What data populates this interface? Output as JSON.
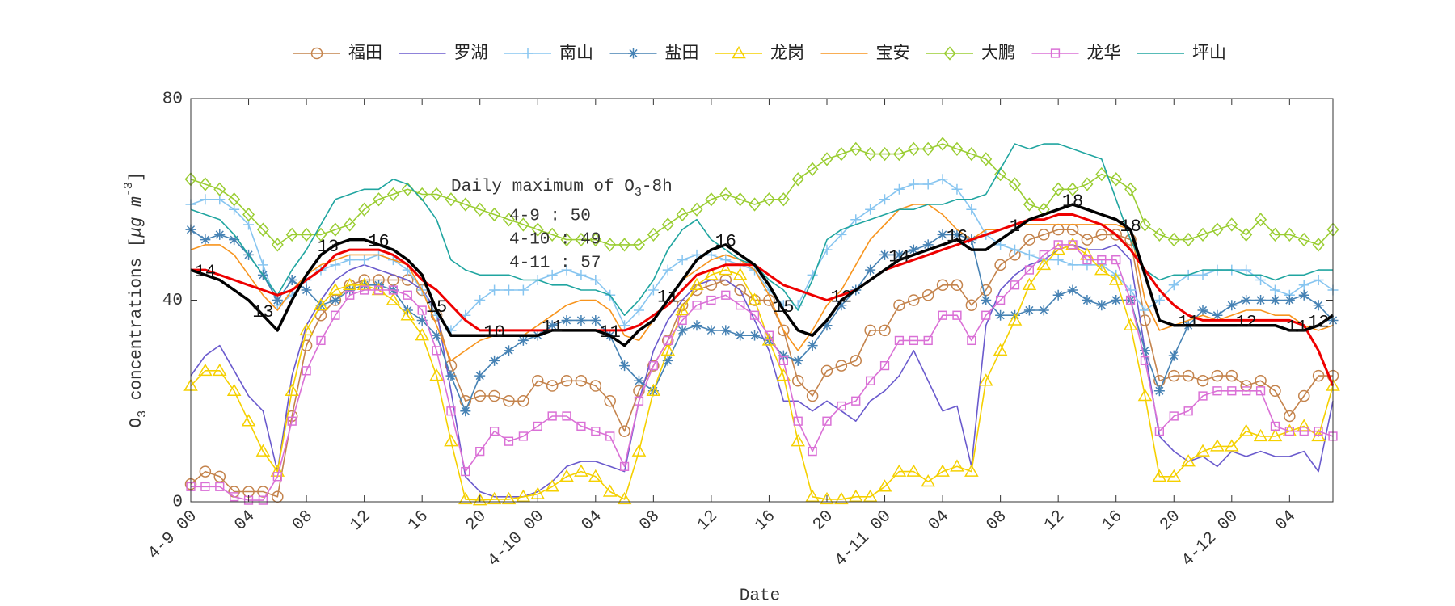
{
  "chart_data": {
    "type": "line",
    "x_label": "Date",
    "y_label": [
      "O",
      "3",
      " concentrations [",
      "μg m",
      "-3",
      "]"
    ],
    "annotation": {
      "title": [
        "Daily maximum of O",
        "3",
        "-8h"
      ],
      "lines": [
        "4-9 : 50",
        "4-10 : 49",
        "4-11 : 57"
      ]
    },
    "x": [
      0,
      1,
      2,
      3,
      4,
      5,
      6,
      7,
      8,
      9,
      10,
      11,
      12,
      13,
      14,
      15,
      16,
      17,
      18,
      19,
      20,
      21,
      22,
      23,
      24,
      25,
      26,
      27,
      28,
      29,
      30,
      31,
      32,
      33,
      34,
      35,
      36,
      37,
      38,
      39,
      40,
      41,
      42,
      43,
      44,
      45,
      46,
      47,
      48,
      49,
      50,
      51,
      52,
      53,
      54,
      55,
      56,
      57,
      58,
      59,
      60,
      61,
      62,
      63,
      64,
      65,
      66,
      67,
      68,
      69,
      70,
      71,
      72,
      73,
      74,
      75,
      76,
      77,
      78,
      79
    ],
    "xlim": [
      0,
      79
    ],
    "xticks": [
      {
        "value": 0,
        "label": "4-9 00"
      },
      {
        "value": 4,
        "label": "04"
      },
      {
        "value": 8,
        "label": "08"
      },
      {
        "value": 12,
        "label": "12"
      },
      {
        "value": 16,
        "label": "16"
      },
      {
        "value": 20,
        "label": "20"
      },
      {
        "value": 24,
        "label": "4-10 00"
      },
      {
        "value": 28,
        "label": "04"
      },
      {
        "value": 32,
        "label": "08"
      },
      {
        "value": 36,
        "label": "12"
      },
      {
        "value": 40,
        "label": "16"
      },
      {
        "value": 44,
        "label": "20"
      },
      {
        "value": 48,
        "label": "4-11 00"
      },
      {
        "value": 52,
        "label": "04"
      },
      {
        "value": 56,
        "label": "08"
      },
      {
        "value": 60,
        "label": "12"
      },
      {
        "value": 64,
        "label": "16"
      },
      {
        "value": 68,
        "label": "20"
      },
      {
        "value": 72,
        "label": "4-12 00"
      },
      {
        "value": 76,
        "label": "04"
      }
    ],
    "ylim": [
      0,
      80
    ],
    "yticks": [
      0,
      40,
      80
    ],
    "series": [
      {
        "name": "福田",
        "color": "#c4834c",
        "marker": "o",
        "values": [
          3.5,
          6,
          5,
          2,
          2,
          2,
          1,
          17,
          31,
          37,
          40,
          43,
          44,
          44,
          44,
          44,
          42,
          37,
          27,
          20,
          21,
          21,
          20,
          20,
          24,
          23,
          24,
          24,
          23,
          20,
          14,
          22,
          27,
          32,
          39,
          42,
          43,
          44,
          42,
          40,
          40,
          34,
          24,
          21,
          26,
          27,
          28,
          34,
          34,
          39,
          40,
          41,
          43,
          43,
          39,
          42,
          47,
          49,
          52,
          53,
          54,
          54,
          52,
          53,
          53,
          52,
          36,
          24,
          25,
          25,
          24,
          25,
          25,
          23,
          24,
          22,
          17,
          21,
          25,
          25
        ]
      },
      {
        "name": "罗湖",
        "color": "#6a5acd",
        "values": [
          25,
          29,
          31,
          26,
          21,
          18,
          6,
          25,
          35,
          40,
          44,
          46,
          47,
          46,
          45,
          44,
          42,
          38,
          22,
          5,
          2,
          1,
          1,
          1,
          2,
          4,
          7,
          8,
          8,
          7,
          6,
          20,
          30,
          36,
          40,
          43,
          44,
          44,
          42,
          36,
          30,
          20,
          20,
          18,
          20,
          18,
          16,
          20,
          22,
          25,
          30,
          24,
          18,
          19,
          7,
          35,
          42,
          45,
          47,
          48,
          50,
          51,
          50,
          50,
          51,
          48,
          30,
          13,
          10,
          8,
          9,
          7,
          10,
          9,
          10,
          9,
          9,
          10,
          6,
          20
        ]
      },
      {
        "name": "南山",
        "color": "#87c5f0",
        "marker": "+",
        "values": [
          59,
          60,
          60,
          58,
          55,
          47,
          39,
          41,
          44,
          46,
          47,
          48,
          48,
          49,
          48,
          46,
          42,
          37,
          34,
          37,
          40,
          42,
          42,
          42,
          44,
          45,
          46,
          45,
          44,
          41,
          35,
          38,
          42,
          46,
          48,
          49,
          49,
          48,
          47,
          46,
          42,
          39,
          39,
          45,
          50,
          53,
          56,
          58,
          60,
          62,
          63,
          63,
          64,
          62,
          58,
          53,
          51,
          50,
          49,
          48,
          48,
          47,
          47,
          47,
          45,
          42,
          38,
          40,
          43,
          45,
          45,
          46,
          46,
          46,
          44,
          42,
          41,
          43,
          44,
          42
        ]
      },
      {
        "name": "盐田",
        "color": "#4682b4",
        "marker": "*",
        "values": [
          54,
          52,
          53,
          52,
          49,
          45,
          40,
          44,
          42,
          39,
          40,
          42,
          43,
          43,
          42,
          38,
          36,
          33,
          25,
          18,
          25,
          28,
          30,
          32,
          33,
          35,
          36,
          36,
          36,
          33,
          27,
          24,
          22,
          28,
          34,
          35,
          34,
          34,
          33,
          33,
          32,
          29,
          28,
          31,
          35,
          39,
          42,
          46,
          49,
          49,
          50,
          51,
          53,
          53,
          52,
          40,
          37,
          37,
          38,
          38,
          41,
          42,
          40,
          39,
          40,
          40,
          30,
          22,
          29,
          35,
          38,
          37,
          39,
          40,
          40,
          40,
          40,
          41,
          39,
          36
        ]
      },
      {
        "name": "龙岗",
        "color": "#f5d000",
        "marker": "^",
        "values": [
          23,
          26,
          26,
          22,
          16,
          10,
          6,
          22,
          34,
          39,
          42,
          43,
          43,
          42,
          40,
          37,
          33,
          25,
          12,
          0.5,
          0.3,
          0.5,
          0.5,
          1,
          1.5,
          3,
          5,
          6,
          5,
          2,
          0.5,
          10,
          22,
          30,
          38,
          43,
          45,
          46,
          45,
          40,
          32,
          25,
          12,
          1,
          0.5,
          0.5,
          1,
          1,
          3,
          6,
          6,
          4,
          6,
          7,
          6,
          24,
          30,
          36,
          43,
          47,
          50,
          51,
          49,
          46,
          44,
          35,
          21,
          5,
          5,
          8,
          10,
          11,
          11,
          14,
          13,
          13,
          14,
          15,
          13,
          23
        ]
      },
      {
        "name": "宝安",
        "color": "#f7941d",
        "values": [
          50,
          51,
          51,
          49,
          45,
          41,
          38,
          42,
          45,
          47,
          48,
          49,
          49,
          49,
          48,
          47,
          42,
          35,
          28,
          30,
          32,
          33,
          33,
          33,
          35,
          37,
          39,
          40,
          40,
          38,
          33,
          32,
          36,
          40,
          44,
          46,
          48,
          49,
          48,
          46,
          41,
          34,
          30,
          34,
          39,
          42,
          47,
          52,
          55,
          58,
          59,
          59,
          57,
          54,
          52,
          54,
          54,
          55,
          55,
          55,
          55,
          55,
          55,
          55,
          55,
          54,
          40,
          34,
          35,
          36,
          37,
          36,
          37,
          38,
          38,
          37,
          37,
          35,
          34,
          35
        ]
      },
      {
        "name": "大鹏",
        "color": "#9acd32",
        "marker": "d",
        "values": [
          64,
          63,
          62,
          60,
          57,
          54,
          51,
          53,
          53,
          53,
          54,
          55,
          58,
          60,
          61,
          62,
          61,
          61,
          60,
          59,
          58,
          57,
          56,
          55,
          54,
          53,
          52,
          52,
          52,
          51,
          51,
          51,
          53,
          55,
          57,
          58,
          60,
          61,
          60,
          59,
          60,
          60,
          64,
          66,
          68,
          69,
          70,
          69,
          69,
          69,
          70,
          70,
          71,
          70,
          69,
          68,
          65,
          63,
          59,
          58,
          62,
          62,
          63,
          65,
          64,
          62,
          55,
          53,
          52,
          52,
          53,
          54,
          55,
          53,
          56,
          53,
          53,
          52,
          51,
          54
        ]
      },
      {
        "name": "龙华",
        "color": "#da70d6",
        "marker": "s",
        "values": [
          3,
          3,
          3,
          1,
          0.3,
          0.3,
          5,
          16,
          26,
          32,
          37,
          41,
          42,
          42,
          42,
          41,
          38,
          30,
          18,
          6,
          10,
          14,
          12,
          13,
          15,
          17,
          17,
          15,
          14,
          13,
          7,
          20,
          27,
          32,
          36,
          39,
          40,
          41,
          39,
          37,
          33,
          28,
          16,
          10,
          16,
          19,
          20,
          24,
          27,
          32,
          32,
          32,
          37,
          37,
          32,
          37,
          40,
          43,
          46,
          49,
          51,
          51,
          48,
          48,
          48,
          40,
          28,
          14,
          17,
          18,
          21,
          22,
          22,
          22,
          22,
          15,
          14,
          14,
          14,
          13
        ]
      },
      {
        "name": "坪山",
        "color": "#20a5a0",
        "values": [
          58,
          57,
          56,
          53,
          49,
          45,
          41,
          46,
          50,
          55,
          60,
          61,
          62,
          62,
          64,
          63,
          60,
          56,
          48,
          46,
          45,
          45,
          45,
          44,
          44,
          43,
          43,
          42,
          42,
          41,
          37,
          40,
          44,
          50,
          54,
          56,
          52,
          50,
          48,
          47,
          44,
          42,
          38,
          44,
          52,
          54,
          55,
          56,
          57,
          58,
          58,
          59,
          59,
          60,
          60,
          61,
          66,
          71,
          70,
          71,
          71,
          70,
          69,
          68,
          60,
          52,
          46,
          44,
          45,
          45,
          46,
          46,
          46,
          45,
          45,
          44,
          45,
          45,
          46,
          46
        ]
      },
      {
        "color": "#ee0000",
        "linewidth": 3,
        "values": [
          46,
          46,
          45,
          44,
          43,
          42,
          41,
          42,
          44,
          46,
          49,
          50,
          50,
          50,
          49,
          47,
          44,
          42,
          39,
          36,
          34,
          34,
          34,
          34,
          34,
          34,
          34,
          34,
          34,
          34,
          34,
          35,
          37,
          39,
          42,
          45,
          46,
          47,
          47,
          47,
          45,
          43,
          42,
          41,
          40,
          41,
          42,
          44,
          46,
          47,
          48,
          49,
          50,
          51,
          52,
          53,
          54,
          55,
          56,
          56,
          57,
          57,
          56,
          55,
          53,
          50,
          46,
          42,
          39,
          37,
          36,
          36,
          36,
          36,
          36,
          36,
          36,
          35,
          30,
          23
        ]
      },
      {
        "color": "#000000",
        "linewidth": 3.5,
        "values": [
          46,
          45,
          44,
          42,
          40,
          37,
          34,
          40,
          45,
          49,
          51,
          52,
          52,
          51,
          50,
          48,
          45,
          38,
          33,
          33,
          33,
          33,
          33,
          33,
          33,
          34,
          34,
          34,
          34,
          33,
          31,
          34,
          36,
          40,
          44,
          48,
          50,
          51,
          49,
          47,
          43,
          38,
          34,
          33,
          36,
          40,
          42,
          44,
          46,
          48,
          49,
          50,
          51,
          52,
          50,
          50,
          52,
          54,
          56,
          57,
          58,
          59,
          58,
          57,
          56,
          54,
          45,
          36,
          35,
          35,
          35,
          35,
          35,
          35,
          35,
          35,
          34,
          34,
          35,
          37
        ],
        "labels": [
          {
            "x": 1,
            "text": 14
          },
          {
            "x": 5,
            "text": 13
          },
          {
            "x": 9.5,
            "text": 13
          },
          {
            "x": 13,
            "text": 16
          },
          {
            "x": 17,
            "text": 15
          },
          {
            "x": 21,
            "text": 10
          },
          {
            "x": 25,
            "text": 11
          },
          {
            "x": 29,
            "text": 11
          },
          {
            "x": 33,
            "text": 11
          },
          {
            "x": 37,
            "text": 16
          },
          {
            "x": 41,
            "text": 15
          },
          {
            "x": 45,
            "text": 12
          },
          {
            "x": 49,
            "text": 14
          },
          {
            "x": 53,
            "text": 16
          },
          {
            "x": 57,
            "text": 1
          },
          {
            "x": 61,
            "text": 18
          },
          {
            "x": 65,
            "text": 18
          },
          {
            "x": 69,
            "text": 11
          },
          {
            "x": 73,
            "text": 12
          },
          {
            "x": 76.5,
            "text": 11
          },
          {
            "x": 78,
            "text": 12
          }
        ]
      }
    ]
  }
}
